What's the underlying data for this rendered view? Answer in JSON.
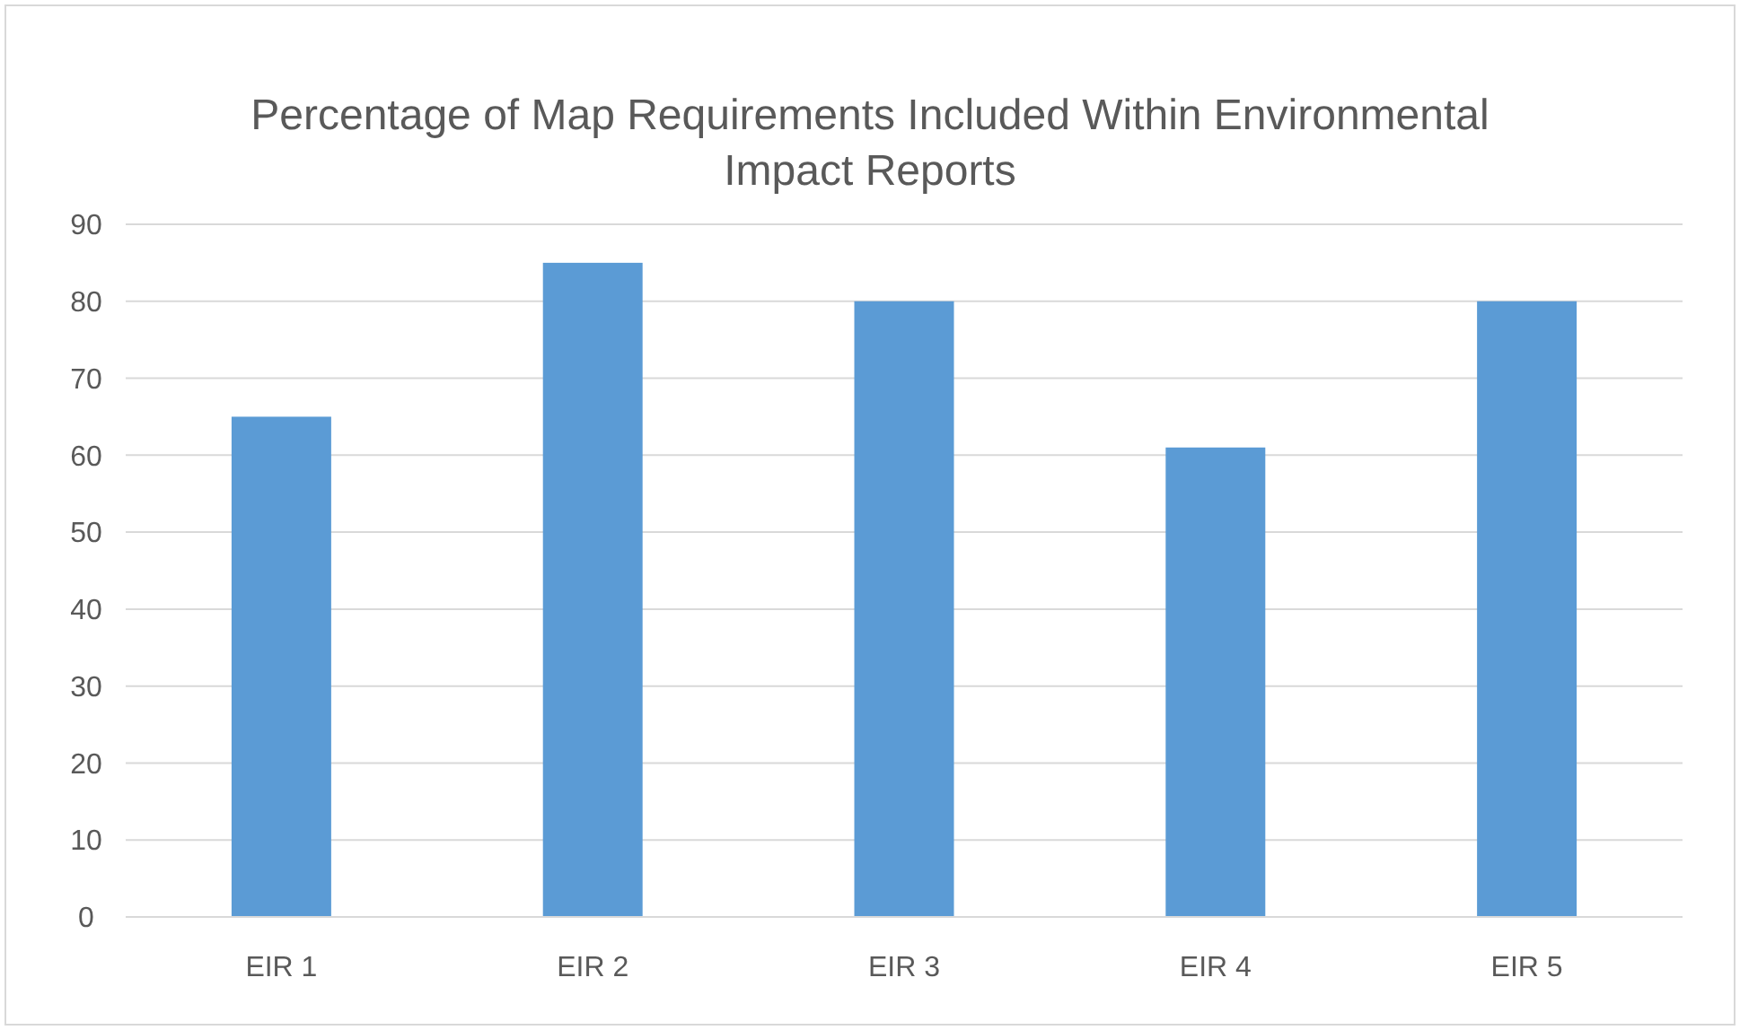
{
  "chart_data": {
    "type": "bar",
    "title": "Percentage of Map Requirements Included Within Environmental Impact Reports",
    "categories": [
      "EIR 1",
      "EIR 2",
      "EIR 3",
      "EIR 4",
      "EIR 5"
    ],
    "values": [
      65,
      85,
      80,
      61,
      80
    ],
    "color": "#5b9bd5",
    "ylim": [
      0,
      90
    ],
    "yticks": [
      0,
      10,
      20,
      30,
      40,
      50,
      60,
      70,
      80,
      90
    ],
    "grid": "y"
  }
}
